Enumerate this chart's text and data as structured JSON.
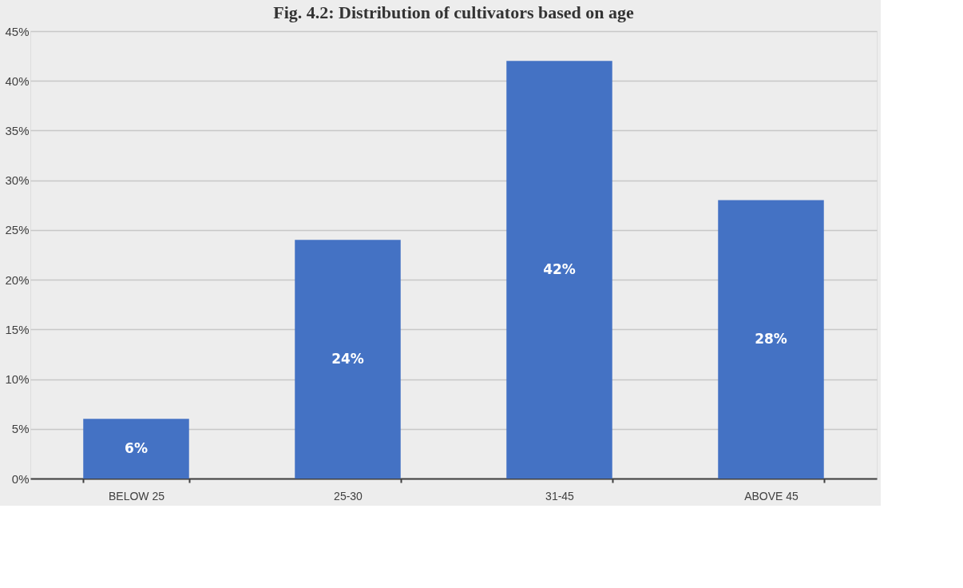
{
  "chart_data": {
    "type": "bar",
    "title": "Fig. 4.2: Distribution of cultivators based on age",
    "categories": [
      "BELOW 25",
      "25-30",
      "31-45",
      "ABOVE 45"
    ],
    "values": [
      6,
      24,
      42,
      28
    ],
    "color": "#4472c4",
    "value_labels": [
      "6%",
      "24%",
      "42%",
      "28%"
    ],
    "ylim": [
      0,
      45
    ],
    "yticks": [
      {
        "value": 0,
        "label": "0%"
      },
      {
        "value": 5,
        "label": "5%"
      },
      {
        "value": 10,
        "label": "10%"
      },
      {
        "value": 15,
        "label": "15%"
      },
      {
        "value": 20,
        "label": "20%"
      },
      {
        "value": 25,
        "label": "25%"
      },
      {
        "value": 30,
        "label": "30%"
      },
      {
        "value": 35,
        "label": "35%"
      },
      {
        "value": 40,
        "label": "40%"
      },
      {
        "value": 45,
        "label": "45%"
      }
    ],
    "grid": "y"
  }
}
